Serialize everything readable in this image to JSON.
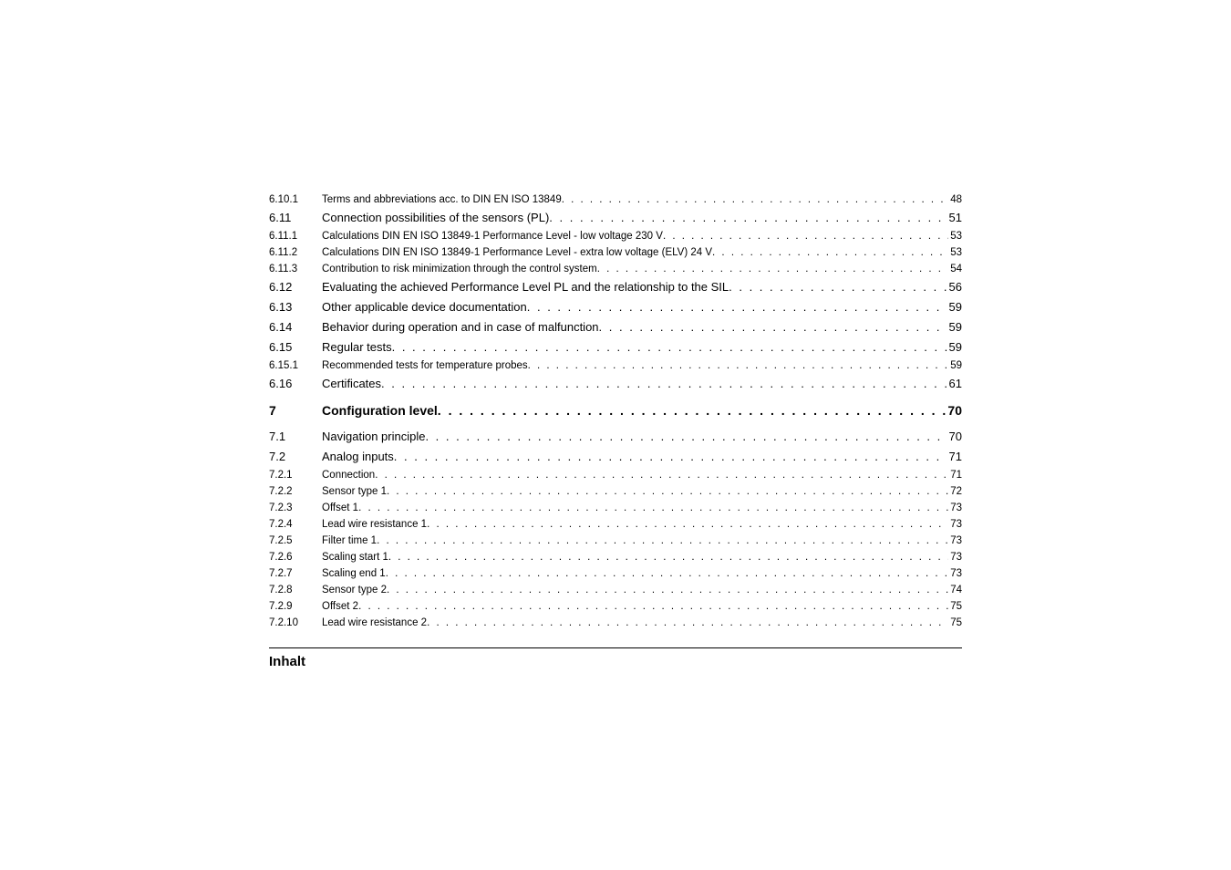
{
  "toc": {
    "rows": [
      {
        "level": "sub",
        "num": "6.10.1",
        "title": "Terms and abbreviations acc. to DIN EN ISO 13849",
        "page": "48"
      },
      {
        "level": "mid",
        "num": "6.11",
        "title": "Connection possibilities of the sensors (PL)",
        "page": "51"
      },
      {
        "level": "sub",
        "num": "6.11.1",
        "title": "Calculations DIN EN ISO 13849-1 Performance Level - low voltage 230 V",
        "page": "53"
      },
      {
        "level": "sub",
        "num": "6.11.2",
        "title": "Calculations DIN EN ISO 13849-1 Performance Level - extra low voltage (ELV) 24 V",
        "page": "53"
      },
      {
        "level": "sub",
        "num": "6.11.3",
        "title": "Contribution to risk minimization through the control system",
        "page": "54"
      },
      {
        "level": "mid",
        "num": "6.12",
        "title": "Evaluating the achieved Performance Level PL and the relationship to the SIL",
        "page": "56"
      },
      {
        "level": "mid",
        "num": "6.13",
        "title": "Other applicable device documentation",
        "page": "59"
      },
      {
        "level": "mid",
        "num": "6.14",
        "title": "Behavior during operation and in case of malfunction",
        "page": "59"
      },
      {
        "level": "mid",
        "num": "6.15",
        "title": "Regular tests",
        "page": "59"
      },
      {
        "level": "sub",
        "num": "6.15.1",
        "title": "Recommended tests for temperature probes",
        "page": "59"
      },
      {
        "level": "mid",
        "num": "6.16",
        "title": "Certificates",
        "page": "61"
      },
      {
        "level": "bold",
        "num": "7",
        "title": "Configuration level",
        "page": "70"
      },
      {
        "level": "mid",
        "num": "7.1",
        "title": "Navigation principle",
        "page": "70"
      },
      {
        "level": "mid",
        "num": "7.2",
        "title": "Analog inputs",
        "page": "71"
      },
      {
        "level": "sub",
        "num": "7.2.1",
        "title": "Connection",
        "page": "71"
      },
      {
        "level": "sub",
        "num": "7.2.2",
        "title": "Sensor type 1",
        "page": "72"
      },
      {
        "level": "sub",
        "num": "7.2.3",
        "title": "Offset 1",
        "page": "73"
      },
      {
        "level": "sub",
        "num": "7.2.4",
        "title": "Lead wire resistance 1",
        "page": "73"
      },
      {
        "level": "sub",
        "num": "7.2.5",
        "title": "Filter time 1",
        "page": "73"
      },
      {
        "level": "sub",
        "num": "7.2.6",
        "title": "Scaling start 1",
        "page": "73"
      },
      {
        "level": "sub",
        "num": "7.2.7",
        "title": "Scaling end 1",
        "page": "73"
      },
      {
        "level": "sub",
        "num": "7.2.8",
        "title": "Sensor type 2",
        "page": "74"
      },
      {
        "level": "sub",
        "num": "7.2.9",
        "title": "Offset 2",
        "page": "75"
      },
      {
        "level": "sub",
        "num": "7.2.10",
        "title": "Lead wire resistance 2",
        "page": "75"
      }
    ]
  },
  "footer": {
    "label": "Inhalt"
  }
}
